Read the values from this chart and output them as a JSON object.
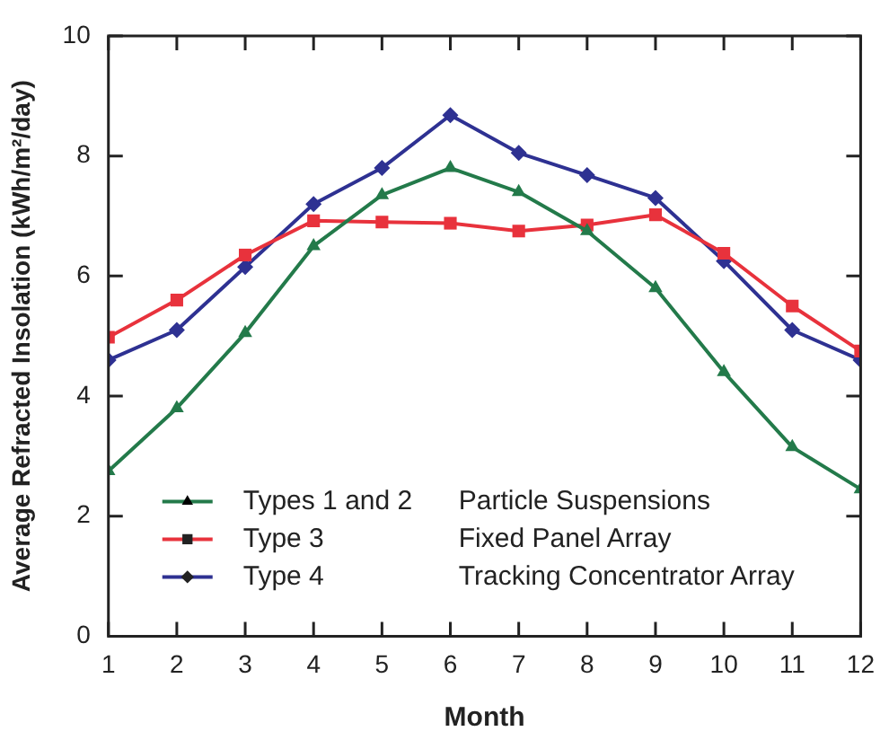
{
  "chart_data": {
    "type": "line",
    "xlabel": "Month",
    "ylabel": "Average Refracted Insolation (kWh/m²/day)",
    "x": [
      1,
      2,
      3,
      4,
      5,
      6,
      7,
      8,
      9,
      10,
      11,
      12
    ],
    "xlim": [
      1,
      12
    ],
    "xticks": [
      1,
      2,
      3,
      4,
      5,
      6,
      7,
      8,
      9,
      10,
      11,
      12
    ],
    "ylim": [
      0,
      10
    ],
    "yticks": [
      0,
      2,
      4,
      6,
      8,
      10
    ],
    "grid": false,
    "legend": "bottom left",
    "line_style": "solid",
    "annotations": [
      "Particle Suspensions",
      "Fixed Panel Array",
      "Tracking Concentrator Array"
    ],
    "series": [
      {
        "name": "Types 1 and 2",
        "color": "#237a4a",
        "marker": "triangle",
        "values": [
          2.75,
          3.8,
          5.05,
          6.5,
          7.35,
          7.8,
          7.4,
          6.75,
          5.8,
          4.4,
          3.15,
          2.45
        ]
      },
      {
        "name": "Type 3",
        "color": "#e8323c",
        "marker": "square",
        "values": [
          4.98,
          5.6,
          6.35,
          6.92,
          6.9,
          6.88,
          6.75,
          6.85,
          7.02,
          6.38,
          5.5,
          4.75
        ]
      },
      {
        "name": "Type 4",
        "color": "#2e3192",
        "marker": "diamond",
        "values": [
          4.6,
          5.1,
          6.15,
          7.2,
          7.8,
          8.68,
          8.05,
          7.68,
          7.3,
          6.25,
          5.1,
          4.6
        ]
      }
    ]
  }
}
